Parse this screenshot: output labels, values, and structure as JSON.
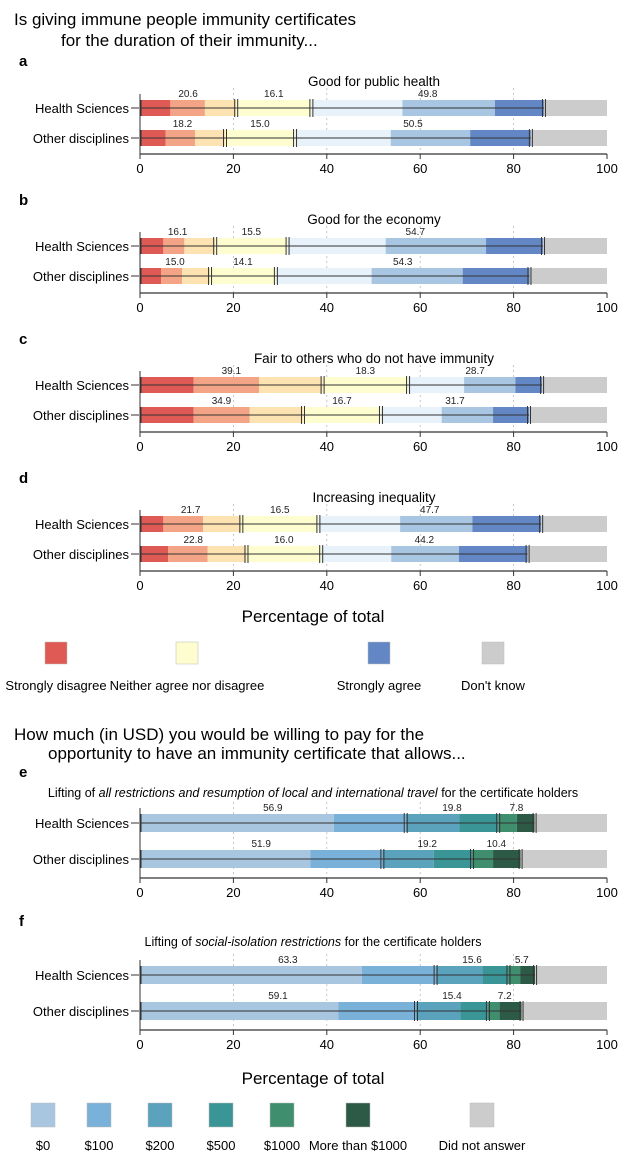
{
  "section1": {
    "title_line1": "Is giving immune people immunity certificates",
    "title_line2": "for the duration of their immunity...",
    "xlabel": "Percentage of total",
    "legend": [
      {
        "label": "Strongly disagree",
        "color": "#e05a55"
      },
      {
        "label": "Neither agree nor disagree",
        "color": "#fdfdd0"
      },
      {
        "label": "Strongly agree",
        "color": "#6287c4"
      },
      {
        "label": "Don't know",
        "color": "#cccccc"
      }
    ]
  },
  "section2": {
    "title_line1": "How much (in USD) you would be willing to pay for the",
    "title_line2": "opportunity to have an immunity certificate that allows...",
    "xlabel": "Percentage of total",
    "legend": [
      {
        "label": "$0",
        "color": "#a9c6e1"
      },
      {
        "label": "$100",
        "color": "#79b1d8"
      },
      {
        "label": "$200",
        "color": "#5ba2bd"
      },
      {
        "label": "$500",
        "color": "#3a9597"
      },
      {
        "label": "$1000",
        "color": "#3f8e6d"
      },
      {
        "label": "More than $1000",
        "color": "#2d5a46"
      },
      {
        "label": "Did not answer",
        "color": "#cccccc"
      }
    ]
  },
  "x_ticks": [
    "0",
    "20",
    "40",
    "60",
    "80",
    "100"
  ],
  "chart_data": [
    {
      "type": "bar",
      "panel": "a",
      "title": "Good for public health",
      "categories": [
        "Health Sciences",
        "Other disciplines"
      ],
      "xlim": [
        0,
        100
      ],
      "segment_colors": [
        "#e05a55",
        "#f3a486",
        "#fde3b1",
        "#fdfdd0",
        "#e8f2fa",
        "#a8c6e1",
        "#6287c4",
        "#cccccc"
      ],
      "rows": [
        {
          "segments": [
            6.5,
            7.4,
            6.7,
            16.1,
            19.5,
            19.8,
            10.5,
            13.5
          ],
          "group_labels": [
            "20.6",
            "16.1",
            "49.8"
          ]
        },
        {
          "segments": [
            5.5,
            6.3,
            6.4,
            15.0,
            20.5,
            17.0,
            13.0,
            16.3
          ],
          "group_labels": [
            "18.2",
            "15.0",
            "50.5"
          ]
        }
      ]
    },
    {
      "type": "bar",
      "panel": "b",
      "title": "Good for the economy",
      "categories": [
        "Health Sciences",
        "Other disciplines"
      ],
      "xlim": [
        0,
        100
      ],
      "segment_colors": [
        "#e05a55",
        "#f3a486",
        "#fde3b1",
        "#fdfdd0",
        "#e8f2fa",
        "#a8c6e1",
        "#6287c4",
        "#cccccc"
      ],
      "rows": [
        {
          "segments": [
            5.0,
            4.5,
            6.6,
            15.5,
            21.0,
            21.5,
            12.2,
            13.7
          ],
          "group_labels": [
            "16.1",
            "15.5",
            "54.7"
          ]
        },
        {
          "segments": [
            4.5,
            4.5,
            6.0,
            14.1,
            20.5,
            19.5,
            14.3,
            16.6
          ],
          "group_labels": [
            "15.0",
            "14.1",
            "54.3"
          ]
        }
      ]
    },
    {
      "type": "bar",
      "panel": "c",
      "title": "Fair to others who do not have immunity",
      "categories": [
        "Health Sciences",
        "Other disciplines"
      ],
      "xlim": [
        0,
        100
      ],
      "segment_colors": [
        "#e05a55",
        "#f3a486",
        "#fde3b1",
        "#fdfdd0",
        "#e8f2fa",
        "#a8c6e1",
        "#6287c4",
        "#cccccc"
      ],
      "rows": [
        {
          "segments": [
            11.5,
            14.0,
            13.6,
            18.3,
            12.0,
            11.0,
            5.7,
            13.9
          ],
          "group_labels": [
            "39.1",
            "18.3",
            "28.7"
          ]
        },
        {
          "segments": [
            11.5,
            12.0,
            11.4,
            16.7,
            13.0,
            11.0,
            7.7,
            16.7
          ],
          "group_labels": [
            "34.9",
            "16.7",
            "31.7"
          ]
        }
      ]
    },
    {
      "type": "bar",
      "panel": "d",
      "title": "Increasing inequality",
      "categories": [
        "Health Sciences",
        "Other disciplines"
      ],
      "xlim": [
        0,
        100
      ],
      "segment_colors": [
        "#e05a55",
        "#f3a486",
        "#fde3b1",
        "#fdfdd0",
        "#e8f2fa",
        "#a8c6e1",
        "#6287c4",
        "#cccccc"
      ],
      "rows": [
        {
          "segments": [
            5.0,
            8.5,
            8.2,
            16.5,
            17.5,
            15.5,
            14.7,
            14.1
          ],
          "group_labels": [
            "21.7",
            "16.5",
            "47.7"
          ]
        },
        {
          "segments": [
            6.0,
            8.5,
            8.3,
            16.0,
            15.0,
            14.5,
            14.7,
            17.0
          ],
          "group_labels": [
            "22.8",
            "16.0",
            "44.2"
          ]
        }
      ]
    },
    {
      "type": "bar",
      "panel": "e",
      "title": "Lifting of all restrictions and resumption of local and international travel for the certificate holders",
      "categories": [
        "Health Sciences",
        "Other disciplines"
      ],
      "xlim": [
        0,
        100
      ],
      "segment_colors": [
        "#a9c6e1",
        "#79b1d8",
        "#5ba2bd",
        "#3a9597",
        "#3f8e6d",
        "#2d5a46",
        "#cccccc"
      ],
      "rows": [
        {
          "segments": [
            41.5,
            15.4,
            11.5,
            8.3,
            4.0,
            3.8,
            15.5
          ],
          "group_labels": [
            "56.9",
            "19.8",
            "7.8"
          ]
        },
        {
          "segments": [
            36.5,
            15.4,
            11.0,
            8.2,
            4.5,
            5.9,
            18.5
          ],
          "group_labels": [
            "51.9",
            "19.2",
            "10.4"
          ]
        }
      ]
    },
    {
      "type": "bar",
      "panel": "f",
      "title": "Lifting of social-isolation restrictions for the certificate holders",
      "categories": [
        "Health Sciences",
        "Other disciplines"
      ],
      "xlim": [
        0,
        100
      ],
      "segment_colors": [
        "#a9c6e1",
        "#79b1d8",
        "#5ba2bd",
        "#3a9597",
        "#3f8e6d",
        "#2d5a46",
        "#cccccc"
      ],
      "rows": [
        {
          "segments": [
            47.5,
            15.8,
            10.0,
            5.6,
            2.5,
            3.2,
            15.4
          ],
          "group_labels": [
            "63.3",
            "15.6",
            "5.7"
          ]
        },
        {
          "segments": [
            42.5,
            16.6,
            9.5,
            5.9,
            2.5,
            4.7,
            18.3
          ],
          "group_labels": [
            "59.1",
            "15.4",
            "7.2"
          ]
        }
      ]
    }
  ]
}
